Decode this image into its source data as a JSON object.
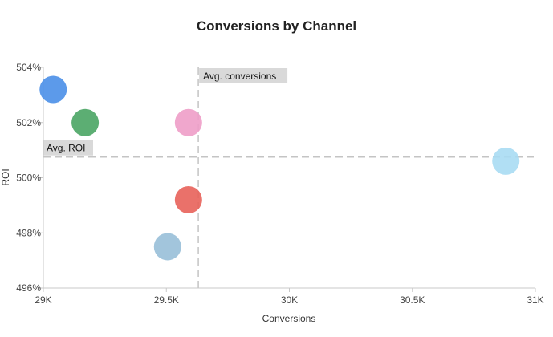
{
  "chart_data": {
    "type": "scatter",
    "title": "Conversions by Channel",
    "xlabel": "Conversions",
    "ylabel": "ROI",
    "xlim": [
      29000,
      31000
    ],
    "ylim": [
      496,
      504
    ],
    "x_ticks": [
      29000,
      29500,
      30000,
      30500,
      31000
    ],
    "x_tick_labels": [
      "29K",
      "29.5K",
      "30K",
      "30.5K",
      "31K"
    ],
    "y_ticks": [
      496,
      498,
      500,
      502,
      504
    ],
    "y_tick_labels": [
      "496%",
      "498%",
      "500%",
      "502%",
      "504%"
    ],
    "grid": false,
    "points": [
      {
        "x": 29040,
        "y": 503.2,
        "color": "#4a8fe8"
      },
      {
        "x": 29170,
        "y": 502.0,
        "color": "#4aa564"
      },
      {
        "x": 29590,
        "y": 502.0,
        "color": "#ee9dc8"
      },
      {
        "x": 29590,
        "y": 499.2,
        "color": "#e8625a"
      },
      {
        "x": 29505,
        "y": 497.5,
        "color": "#98bfd8"
      },
      {
        "x": 30880,
        "y": 500.6,
        "color": "#a9dcf3"
      }
    ],
    "reference_lines": {
      "x": {
        "value": 29630,
        "label": "Avg. conversions"
      },
      "y": {
        "value": 500.75,
        "label": "Avg. ROI"
      }
    }
  }
}
